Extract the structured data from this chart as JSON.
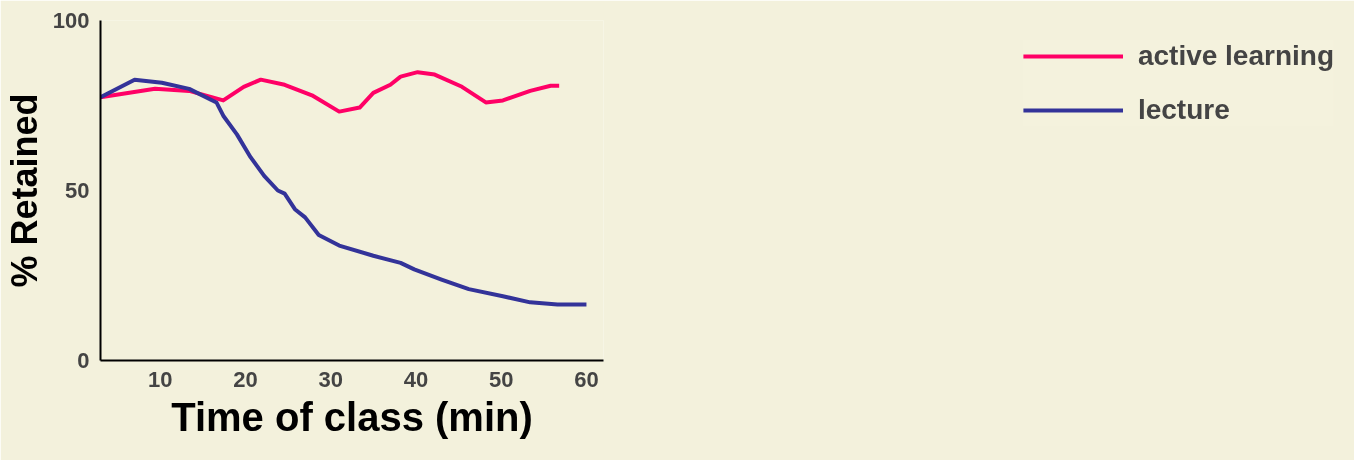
{
  "chart_data": {
    "type": "line",
    "xlabel": "Time of class (min)",
    "ylabel": "% Retained",
    "xlim": [
      3,
      62
    ],
    "ylim": [
      0,
      100
    ],
    "xticks": [
      10,
      20,
      30,
      40,
      50,
      60
    ],
    "yticks": [
      0,
      50,
      100
    ],
    "grid": false,
    "legend": "right",
    "marker": "none",
    "line_style": "solid",
    "series": [
      {
        "name": "active learning",
        "color": "#ff0066",
        "x": [
          3,
          9.4,
          13.4,
          17.4,
          19.8,
          21.8,
          24.6,
          27.8,
          31,
          33.4,
          35,
          37,
          38.2,
          40.2,
          42.2,
          45.4,
          48.2,
          50.2,
          53.4,
          55.8,
          56.8
        ],
        "values": [
          77.4,
          79.9,
          79.3,
          76.5,
          80.5,
          82.6,
          81.1,
          78,
          73.2,
          74.4,
          78.7,
          81.1,
          83.5,
          84.8,
          84.1,
          80.5,
          75.9,
          76.5,
          79.3,
          80.8,
          80.8
        ]
      },
      {
        "name": "lecture",
        "color": "#333399",
        "x": [
          3,
          7,
          10.2,
          13.4,
          16.6,
          17.4,
          19,
          20.6,
          22.2,
          23.8,
          24.6,
          25.8,
          27,
          28.6,
          31,
          35,
          38.2,
          39.8,
          43,
          46.2,
          50.2,
          53.4,
          56.6,
          60
        ],
        "values": [
          77.4,
          82.6,
          81.7,
          79.9,
          75.9,
          72,
          66.5,
          59.8,
          54.3,
          50,
          49.1,
          44.5,
          42.1,
          36.9,
          33.8,
          30.8,
          28.7,
          26.8,
          23.8,
          21,
          18.9,
          17.1,
          16.5,
          16.5
        ]
      }
    ]
  }
}
